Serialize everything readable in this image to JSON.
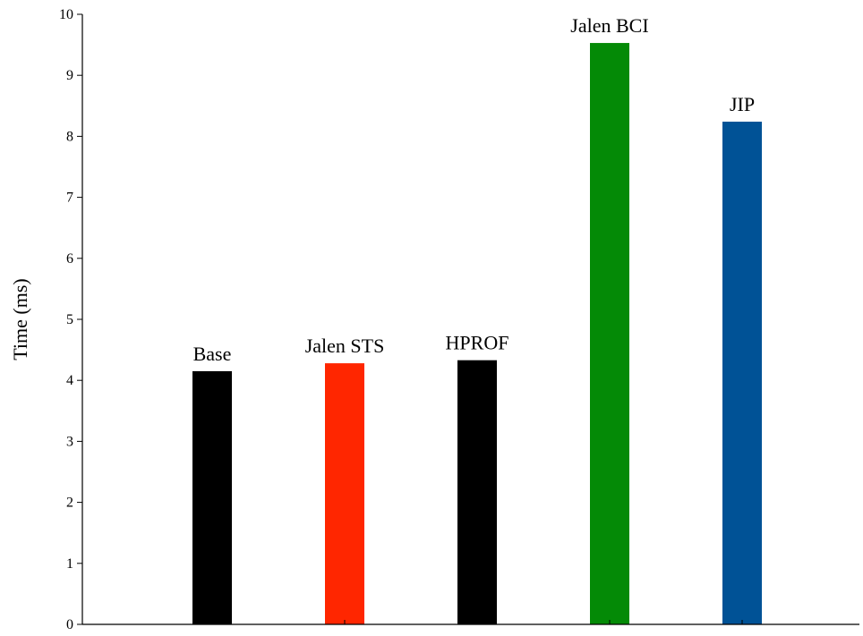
{
  "chart_data": {
    "type": "bar",
    "title": "",
    "xlabel": "",
    "ylabel": "Time (ms)",
    "ylim": [
      0,
      10
    ],
    "yticks": [
      0,
      1,
      2,
      3,
      4,
      5,
      6,
      7,
      8,
      9,
      10
    ],
    "grid": false,
    "legend": "none",
    "categories": [
      "Base",
      "Jalen STS",
      "HPROF",
      "Jalen BCI",
      "JIP"
    ],
    "values": [
      4.15,
      4.28,
      4.33,
      9.53,
      8.24
    ],
    "bar_colors": [
      "#000000",
      "#ff2600",
      "#000000",
      "#048a06",
      "#005296"
    ]
  }
}
